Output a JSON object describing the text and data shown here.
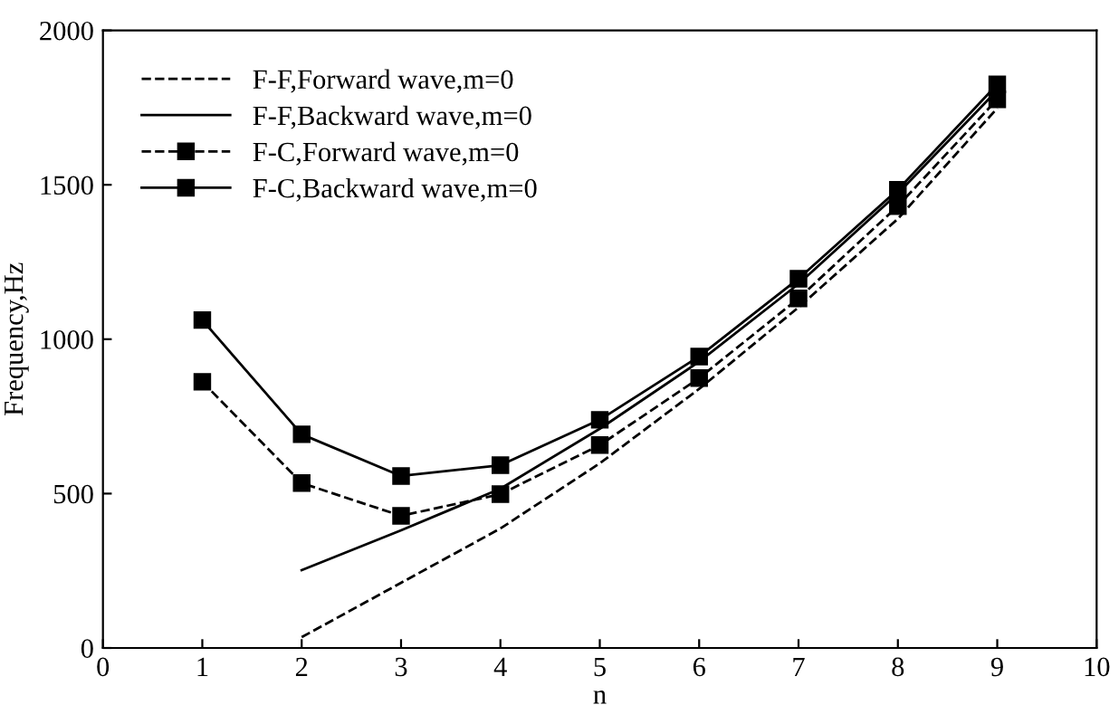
{
  "chart_data": {
    "type": "line",
    "xlabel": "n",
    "ylabel": "Frequency,Hz",
    "xlim": [
      0,
      10
    ],
    "ylim": [
      0,
      2000
    ],
    "xticks": [
      0,
      1,
      2,
      3,
      4,
      5,
      6,
      7,
      8,
      9,
      10
    ],
    "yticks": [
      0,
      500,
      1000,
      1500,
      2000
    ],
    "grid": false,
    "legend": "top left",
    "series": [
      {
        "name": "F-F,Forward wave,m=0",
        "color": "#000000",
        "line_style": "dashed",
        "marker": "none",
        "x": [
          2,
          3,
          4,
          5,
          6,
          7,
          8,
          9
        ],
        "values": [
          35,
          211,
          387,
          598,
          839,
          1103,
          1390,
          1748
        ]
      },
      {
        "name": "F-F,Backward wave,m=0",
        "color": "#000000",
        "line_style": "solid",
        "marker": "none",
        "x": [
          2,
          3,
          4,
          5,
          6,
          7,
          8,
          9
        ],
        "values": [
          252,
          381,
          516,
          710,
          927,
          1179,
          1472,
          1806
        ]
      },
      {
        "name": "F-C,Forward wave,m=0",
        "color": "#000000",
        "line_style": "dashed",
        "marker": "square",
        "x": [
          1,
          2,
          3,
          4,
          5,
          6,
          7,
          8,
          9
        ],
        "values": [
          862,
          534,
          428,
          498,
          657,
          874,
          1132,
          1431,
          1777
        ]
      },
      {
        "name": "F-C,Backward wave,m=0",
        "color": "#000000",
        "line_style": "solid",
        "marker": "square",
        "x": [
          1,
          2,
          3,
          4,
          5,
          6,
          7,
          8,
          9
        ],
        "values": [
          1062,
          692,
          557,
          592,
          739,
          944,
          1196,
          1484,
          1825
        ]
      }
    ]
  }
}
